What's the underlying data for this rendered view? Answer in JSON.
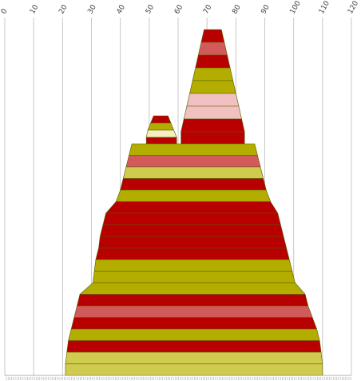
{
  "chart_data": {
    "type": "area",
    "title": "",
    "xlabel": "",
    "ylabel": "",
    "xlim": [
      0,
      120
    ],
    "x_ticks": [
      "0",
      "10",
      "20",
      "30",
      "40",
      "50",
      "60",
      "70",
      "80",
      "90",
      "100",
      "110",
      "120"
    ],
    "grid": true,
    "legend": "none",
    "colors": {
      "red": "#b80000",
      "olive": "#b3ad00",
      "salmon": "#d35a5a",
      "pink": "#f1c0c0",
      "cream": "#f5efc0",
      "khaki": "#cfcb4e"
    },
    "top_peak": {
      "bands": [
        {
          "left": 69,
          "right": 75,
          "color": "red"
        },
        {
          "left": 68,
          "right": 76,
          "color": "salmon"
        },
        {
          "left": 67,
          "right": 77,
          "color": "red"
        },
        {
          "left": 66,
          "right": 78,
          "color": "olive"
        },
        {
          "left": 65,
          "right": 79,
          "color": "olive"
        },
        {
          "left": 64,
          "right": 80,
          "color": "pink"
        },
        {
          "left": 63,
          "right": 81,
          "color": "pink"
        },
        {
          "left": 62,
          "right": 82,
          "color": "red"
        },
        {
          "left": 61,
          "right": 83,
          "color": "red"
        }
      ]
    },
    "small_peak": {
      "bands": [
        {
          "left": 51.5,
          "right": 56.5,
          "color": "red"
        },
        {
          "left": 50.5,
          "right": 57.5,
          "color": "olive"
        },
        {
          "left": 49.5,
          "right": 58.5,
          "color": "cream"
        },
        {
          "left": 49,
          "right": 59.5,
          "color": "red"
        }
      ]
    },
    "main_body": {
      "bands": [
        {
          "left": 44,
          "right": 86.5,
          "color": "olive"
        },
        {
          "left": 43,
          "right": 87.5,
          "color": "salmon"
        },
        {
          "left": 42,
          "right": 88.5,
          "color": "khaki"
        },
        {
          "left": 41,
          "right": 89.5,
          "color": "red"
        },
        {
          "left": 40,
          "right": 90.5,
          "color": "olive"
        },
        {
          "left": 38.5,
          "right": 92,
          "color": "red"
        },
        {
          "left": 35,
          "right": 94.5,
          "color": "red"
        },
        {
          "left": 34,
          "right": 95.5,
          "color": "red"
        },
        {
          "left": 33,
          "right": 96.5,
          "color": "red"
        },
        {
          "left": 32.5,
          "right": 97.5,
          "color": "red"
        },
        {
          "left": 31.5,
          "right": 98.5,
          "color": "olive"
        },
        {
          "left": 31,
          "right": 99.5,
          "color": "olive"
        },
        {
          "left": 30.5,
          "right": 100.5,
          "color": "olive"
        },
        {
          "left": 26,
          "right": 104,
          "color": "red"
        },
        {
          "left": 25,
          "right": 105,
          "color": "salmon"
        },
        {
          "left": 24,
          "right": 106.5,
          "color": "red"
        },
        {
          "left": 23,
          "right": 108,
          "color": "olive"
        },
        {
          "left": 22,
          "right": 109,
          "color": "red"
        },
        {
          "left": 21.5,
          "right": 109.5,
          "color": "khaki"
        },
        {
          "left": 21,
          "right": 110,
          "color": "khaki"
        }
      ]
    }
  }
}
